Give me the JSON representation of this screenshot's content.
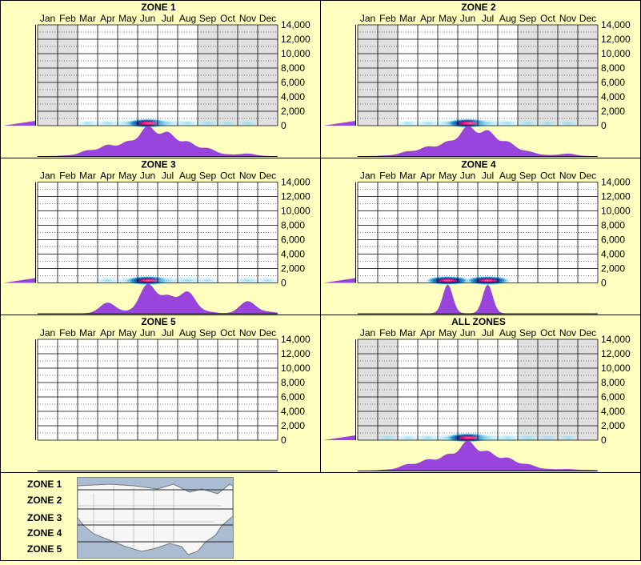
{
  "months": [
    "Jan",
    "Feb",
    "Mar",
    "Apr",
    "May",
    "Jun",
    "Jul",
    "Aug",
    "Sep",
    "Oct",
    "Nov",
    "Dec"
  ],
  "yticks": [
    "14,000",
    "12,000",
    "10,000",
    "8,000",
    "6,000",
    "4,000",
    "2,000",
    "0"
  ],
  "colors": {
    "background": "#ffffc0",
    "grid": "#000000",
    "shade": "#e0e0e0",
    "curve": "#9944dd",
    "hot": "#ff0066",
    "cold": "#0066cc"
  },
  "chart_data": [
    {
      "type": "area",
      "title": "ZONE 1",
      "months": [
        "Jan",
        "Feb",
        "Mar",
        "Apr",
        "May",
        "Jun",
        "Jul",
        "Aug",
        "Sep",
        "Oct",
        "Nov",
        "Dec"
      ],
      "ylim": [
        0,
        14000
      ],
      "shaded_months": [
        "Jan",
        "Feb",
        "Sep",
        "Oct",
        "Nov",
        "Dec"
      ],
      "monthly_profile": [
        0.0,
        0.02,
        0.18,
        0.35,
        0.45,
        0.95,
        0.75,
        0.45,
        0.25,
        0.05,
        0.08,
        0.0
      ]
    },
    {
      "type": "area",
      "title": "ZONE 2",
      "months": [
        "Jan",
        "Feb",
        "Mar",
        "Apr",
        "May",
        "Jun",
        "Jul",
        "Aug",
        "Sep",
        "Oct",
        "Nov",
        "Dec"
      ],
      "ylim": [
        0,
        14000
      ],
      "shaded_months": [
        "Jan",
        "Feb",
        "Sep",
        "Oct",
        "Nov",
        "Dec"
      ],
      "monthly_profile": [
        0.0,
        0.02,
        0.15,
        0.3,
        0.45,
        0.95,
        0.8,
        0.45,
        0.15,
        0.03,
        0.08,
        0.0
      ]
    },
    {
      "type": "area",
      "title": "ZONE 3",
      "months": [
        "Jan",
        "Feb",
        "Mar",
        "Apr",
        "May",
        "Jun",
        "Jul",
        "Aug",
        "Sep",
        "Oct",
        "Nov",
        "Dec"
      ],
      "ylim": [
        0,
        14000
      ],
      "shaded_months": [],
      "monthly_profile": [
        0.0,
        0.0,
        0.0,
        0.35,
        0.05,
        0.95,
        0.55,
        0.7,
        0.05,
        0.0,
        0.4,
        0.05
      ]
    },
    {
      "type": "area",
      "title": "ZONE 4",
      "months": [
        "Jan",
        "Feb",
        "Mar",
        "Apr",
        "May",
        "Jun",
        "Jul",
        "Aug",
        "Sep",
        "Oct",
        "Nov",
        "Dec"
      ],
      "ylim": [
        0,
        14000
      ],
      "shaded_months": [],
      "monthly_profile": [
        0.0,
        0.0,
        0.0,
        0.0,
        0.95,
        0.0,
        0.95,
        0.0,
        0.0,
        0.0,
        0.0,
        0.0
      ]
    },
    {
      "type": "area",
      "title": "ZONE 5",
      "months": [
        "Jan",
        "Feb",
        "Mar",
        "Apr",
        "May",
        "Jun",
        "Jul",
        "Aug",
        "Sep",
        "Oct",
        "Nov",
        "Dec"
      ],
      "ylim": [
        0,
        14000
      ],
      "shaded_months": [],
      "monthly_profile": [
        0,
        0,
        0,
        0,
        0,
        0,
        0,
        0,
        0,
        0,
        0,
        0
      ]
    },
    {
      "type": "area",
      "title": "ALL ZONES",
      "months": [
        "Jan",
        "Feb",
        "Mar",
        "Apr",
        "May",
        "Jun",
        "Jul",
        "Aug",
        "Sep",
        "Oct",
        "Nov",
        "Dec"
      ],
      "ylim": [
        0,
        14000
      ],
      "shaded_months": [
        "Jan",
        "Feb",
        "Sep",
        "Oct",
        "Nov",
        "Dec"
      ],
      "monthly_profile": [
        0.0,
        0.03,
        0.2,
        0.35,
        0.5,
        0.95,
        0.6,
        0.4,
        0.2,
        0.05,
        0.05,
        0.02
      ]
    }
  ],
  "zone_legend": [
    "ZONE 1",
    "ZONE 2",
    "ZONE 3",
    "ZONE 4",
    "ZONE 5"
  ]
}
